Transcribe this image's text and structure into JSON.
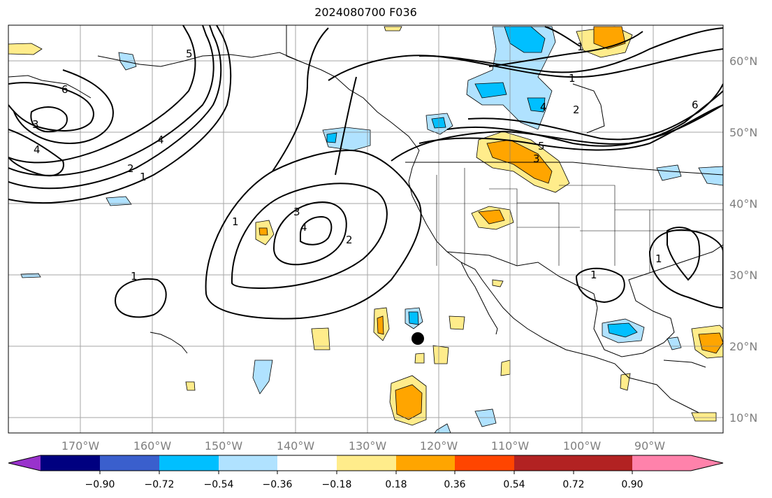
{
  "title": "2024080700 F036",
  "lon_labels": [
    "170°W",
    "160°W",
    "150°W",
    "140°W",
    "130°W",
    "120°W",
    "110°W",
    "100°W",
    "90°W"
  ],
  "lat_labels": [
    "60°N",
    "50°N",
    "40°N",
    "30°N",
    "20°N",
    "10°N"
  ],
  "colorbar": {
    "ticks": [
      "−0.90",
      "−0.72",
      "−0.54",
      "−0.36",
      "−0.18",
      "0.18",
      "0.36",
      "0.54",
      "0.72",
      "0.90"
    ],
    "colors": [
      "#9932cc",
      "#000080",
      "#3a5fcd",
      "#00bfff",
      "#b0e2ff",
      "#ffffff",
      "#ffec8b",
      "#ffa500",
      "#ff4500",
      "#b22222",
      "#ff82ab"
    ]
  },
  "contour_labels": [
    "1",
    "2",
    "3",
    "4",
    "5",
    "6"
  ],
  "colors": {
    "contour": "#000000",
    "grid": "#808080",
    "coast": "#000000",
    "light_blue": "#b0e2ff",
    "cyan": "#00bfff",
    "light_yellow": "#ffec8b",
    "orange": "#ffa500"
  }
}
